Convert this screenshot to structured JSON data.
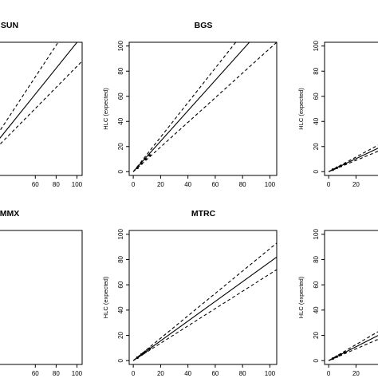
{
  "chart_data": [
    {
      "type": "line",
      "title": "SUN",
      "ylabel": "",
      "xlim": [
        0,
        105
      ],
      "ylim": [
        -3,
        103
      ],
      "xticks": [
        60,
        80,
        100
      ],
      "yticks": [],
      "series": [
        {
          "style": "solid",
          "x": [
            0,
            105
          ],
          "y": [
            0,
            108
          ]
        },
        {
          "style": "dashed",
          "x": [
            0,
            105
          ],
          "y": [
            0,
            132
          ]
        },
        {
          "style": "dashed",
          "x": [
            0,
            105
          ],
          "y": [
            0,
            88
          ]
        }
      ],
      "points": [],
      "box": {
        "left": true
      }
    },
    {
      "type": "line",
      "title": "BGS",
      "ylabel": "HLC (expected)",
      "xlim": [
        -3,
        105
      ],
      "ylim": [
        -3,
        103
      ],
      "xticks": [
        0,
        20,
        40,
        60,
        80,
        100
      ],
      "yticks": [
        0,
        20,
        40,
        60,
        80,
        100
      ],
      "series": [
        {
          "style": "solid",
          "x": [
            0,
            85
          ],
          "y": [
            0,
            103
          ]
        },
        {
          "style": "dashed",
          "x": [
            0,
            75
          ],
          "y": [
            0,
            103
          ]
        },
        {
          "style": "dashed",
          "x": [
            0,
            105
          ],
          "y": [
            0,
            103
          ]
        }
      ],
      "points": [
        [
          3,
          3
        ],
        [
          6,
          6.5
        ],
        [
          9,
          10
        ],
        [
          12,
          13
        ]
      ],
      "box": {
        "left": true
      }
    },
    {
      "type": "line",
      "title": "",
      "ylabel": "HLC (expected)",
      "xlim": [
        -3,
        105
      ],
      "ylim": [
        -3,
        103
      ],
      "xticks": [
        0,
        20
      ],
      "yticks": [
        0,
        20,
        40,
        60,
        80,
        100
      ],
      "series": [
        {
          "style": "solid",
          "x": [
            0,
            60
          ],
          "y": [
            0,
            31
          ]
        },
        {
          "style": "dashed",
          "x": [
            0,
            60
          ],
          "y": [
            0,
            35
          ]
        },
        {
          "style": "dashed",
          "x": [
            0,
            60
          ],
          "y": [
            0,
            27
          ]
        }
      ],
      "points": [
        [
          3,
          1.6
        ],
        [
          6,
          3.1
        ],
        [
          9,
          4.6
        ],
        [
          12,
          6.2
        ]
      ],
      "box": {
        "left": true
      }
    },
    {
      "type": "line",
      "title": "MMX",
      "ylabel": "",
      "xlim": [
        0,
        105
      ],
      "ylim": [
        -3,
        103
      ],
      "xticks": [
        60,
        80,
        100
      ],
      "yticks": [],
      "series": [],
      "points": [],
      "box": {
        "left": true
      }
    },
    {
      "type": "line",
      "title": "MTRC",
      "ylabel": "HLC (expected)",
      "xlim": [
        -3,
        105
      ],
      "ylim": [
        -3,
        103
      ],
      "xticks": [
        0,
        20,
        40,
        60,
        80,
        100
      ],
      "yticks": [
        0,
        20,
        40,
        60,
        80,
        100
      ],
      "series": [
        {
          "style": "solid",
          "x": [
            0,
            105
          ],
          "y": [
            0,
            82
          ]
        },
        {
          "style": "dashed",
          "x": [
            0,
            105
          ],
          "y": [
            0,
            93
          ]
        },
        {
          "style": "dashed",
          "x": [
            0,
            105
          ],
          "y": [
            0,
            72
          ]
        }
      ],
      "points": [
        [
          3,
          2.4
        ],
        [
          6,
          4.8
        ],
        [
          9,
          7.1
        ],
        [
          12,
          9.5
        ]
      ],
      "box": {
        "left": true
      }
    },
    {
      "type": "line",
      "title": "",
      "ylabel": "HLC (expected)",
      "xlim": [
        -3,
        105
      ],
      "ylim": [
        -3,
        103
      ],
      "xticks": [
        0,
        20
      ],
      "yticks": [
        0,
        20,
        40,
        60,
        80,
        100
      ],
      "series": [
        {
          "style": "solid",
          "x": [
            0,
            60
          ],
          "y": [
            0,
            33
          ]
        },
        {
          "style": "dashed",
          "x": [
            0,
            60
          ],
          "y": [
            0,
            38
          ]
        },
        {
          "style": "dashed",
          "x": [
            0,
            60
          ],
          "y": [
            0,
            28
          ]
        }
      ],
      "points": [
        [
          3,
          1.6
        ],
        [
          6,
          3.2
        ],
        [
          9,
          4.8
        ],
        [
          12,
          6.4
        ]
      ],
      "box": {
        "left": true
      }
    }
  ]
}
